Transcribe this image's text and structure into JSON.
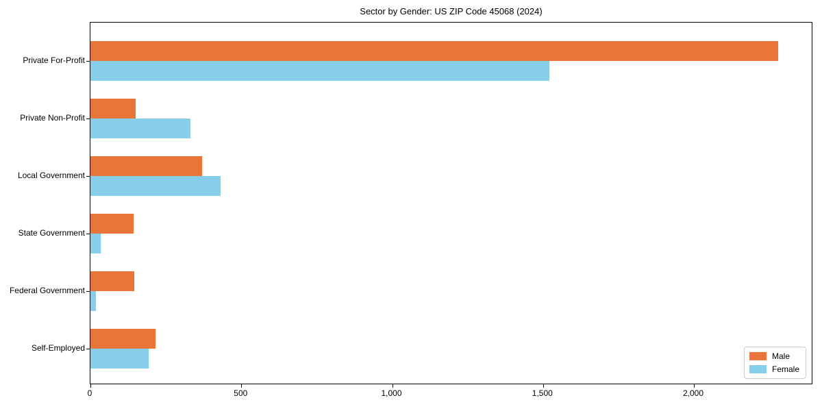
{
  "title": "Sector by Gender: US ZIP Code 45068 (2024)",
  "chart_data": {
    "type": "bar",
    "orientation": "horizontal",
    "title": "Sector by Gender: US ZIP Code 45068 (2024)",
    "categories": [
      "Private For-Profit",
      "Private Non-Profit",
      "Local Government",
      "State Government",
      "Federal Government",
      "Self-Employed"
    ],
    "series": [
      {
        "name": "Male",
        "color": "#E8763A",
        "values": [
          2280,
          150,
          370,
          144,
          145,
          215
        ]
      },
      {
        "name": "Female",
        "color": "#87CEEB",
        "values": [
          1520,
          332,
          432,
          33,
          17,
          193
        ]
      }
    ],
    "xlabel": "",
    "ylabel": "",
    "xlim": [
      0,
      2395
    ],
    "x_ticks": [
      0,
      500,
      1000,
      1500,
      2000
    ],
    "x_tick_labels": [
      "0",
      "500",
      "1,000",
      "1,500",
      "2,000"
    ],
    "grid": false,
    "legend": {
      "position": "lower right",
      "entries": [
        "Male",
        "Female"
      ]
    }
  }
}
